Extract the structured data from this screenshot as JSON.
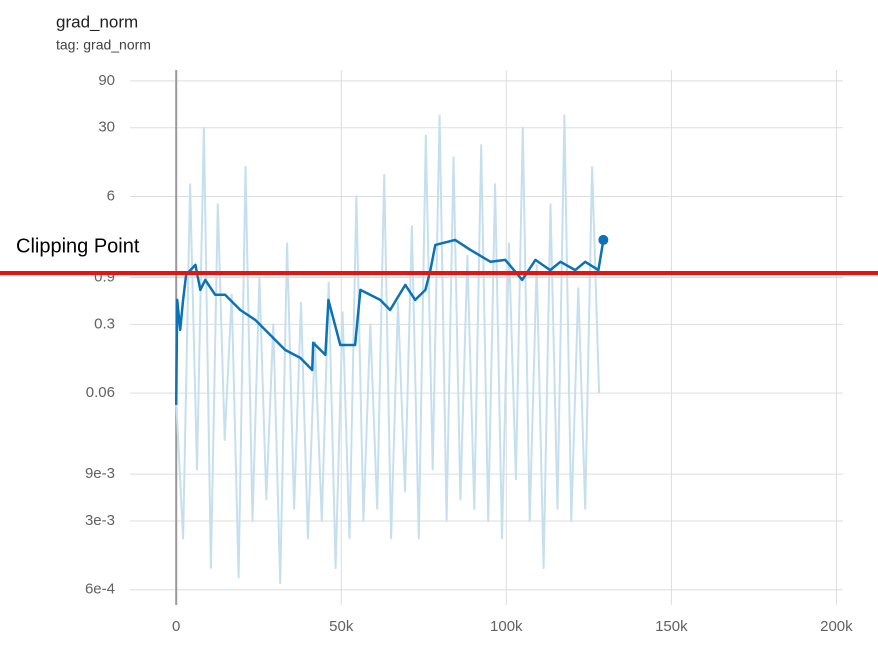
{
  "chart_data": {
    "type": "line",
    "title": "grad_norm",
    "subtitle": "tag: grad_norm",
    "log_y": true,
    "grid": true,
    "xlim": [
      -14000,
      202000
    ],
    "xticks": [
      {
        "value": 0,
        "label": "0"
      },
      {
        "value": 50000,
        "label": "50k"
      },
      {
        "value": 100000,
        "label": "100k"
      },
      {
        "value": 150000,
        "label": "150k"
      },
      {
        "value": 200000,
        "label": "200k"
      }
    ],
    "ylim": [
      0.00042,
      116
    ],
    "yticks": [
      90,
      30,
      6,
      0.9,
      0.3,
      0.06,
      {
        "value": 0.009,
        "label": "9e-3"
      },
      {
        "value": 0.003,
        "label": "3e-3"
      },
      {
        "value": 0.0006,
        "label": "6e-4"
      }
    ],
    "annotation": {
      "text": "Clipping Point",
      "value": 1.0,
      "color": "#e8130f"
    },
    "series": [
      {
        "role": "raw",
        "color": "#c6dfee",
        "x": [
          0,
          2100,
          4200,
          6300,
          8400,
          10500,
          12600,
          14700,
          16800,
          18900,
          21000,
          23100,
          25200,
          27300,
          29400,
          31500,
          33600,
          35700,
          37800,
          39900,
          42000,
          44100,
          46200,
          48300,
          50400,
          52500,
          54600,
          56700,
          58800,
          60900,
          63000,
          65100,
          67200,
          69300,
          71400,
          73500,
          75600,
          77700,
          79800,
          81900,
          84000,
          86100,
          88200,
          90300,
          92400,
          94500,
          96600,
          98700,
          100800,
          102900,
          105000,
          107100,
          109200,
          111300,
          113400,
          115500,
          117600,
          119700,
          121800,
          123900,
          126000,
          128100
        ],
        "values": [
          0.05,
          0.002,
          8,
          0.01,
          30,
          0.001,
          5,
          0.02,
          0.6,
          0.0008,
          12,
          0.003,
          0.9,
          0.005,
          0.3,
          0.0007,
          2,
          0.004,
          0.5,
          0.002,
          0.2,
          0.003,
          0.8,
          0.001,
          0.4,
          0.002,
          6,
          0.003,
          0.3,
          0.004,
          10,
          0.002,
          0.5,
          0.006,
          3,
          0.002,
          25,
          0.01,
          40,
          0.003,
          15,
          0.005,
          1.5,
          0.004,
          20,
          0.003,
          8,
          0.002,
          2,
          0.008,
          30,
          0.003,
          1.2,
          0.001,
          5,
          0.004,
          40,
          0.003,
          0.7,
          0.004,
          12,
          0.06
        ]
      },
      {
        "role": "smoothed",
        "color": "#0b72b5",
        "x": [
          0,
          300,
          1200,
          2100,
          3000,
          5800,
          7300,
          8800,
          11800,
          14800,
          19400,
          23900,
          28500,
          33000,
          37600,
          41200,
          41500,
          45200,
          46100,
          49700,
          54200,
          55800,
          61800,
          64800,
          69400,
          72400,
          75500,
          77000,
          78500,
          84500,
          89100,
          95200,
          99700,
          104800,
          108800,
          113300,
          116400,
          120900,
          123900,
          127900,
          129400
        ],
        "values": [
          0.0455,
          0.533,
          0.264,
          0.533,
          0.956,
          1.21,
          0.673,
          0.85,
          0.6,
          0.6,
          0.42,
          0.334,
          0.234,
          0.165,
          0.137,
          0.103,
          0.195,
          0.147,
          0.533,
          0.185,
          0.185,
          0.673,
          0.533,
          0.42,
          0.757,
          0.533,
          0.673,
          1.07,
          1.93,
          2.17,
          1.72,
          1.3,
          1.36,
          0.85,
          1.36,
          1.07,
          1.3,
          1.07,
          1.3,
          1.07,
          2.17
        ]
      }
    ]
  }
}
